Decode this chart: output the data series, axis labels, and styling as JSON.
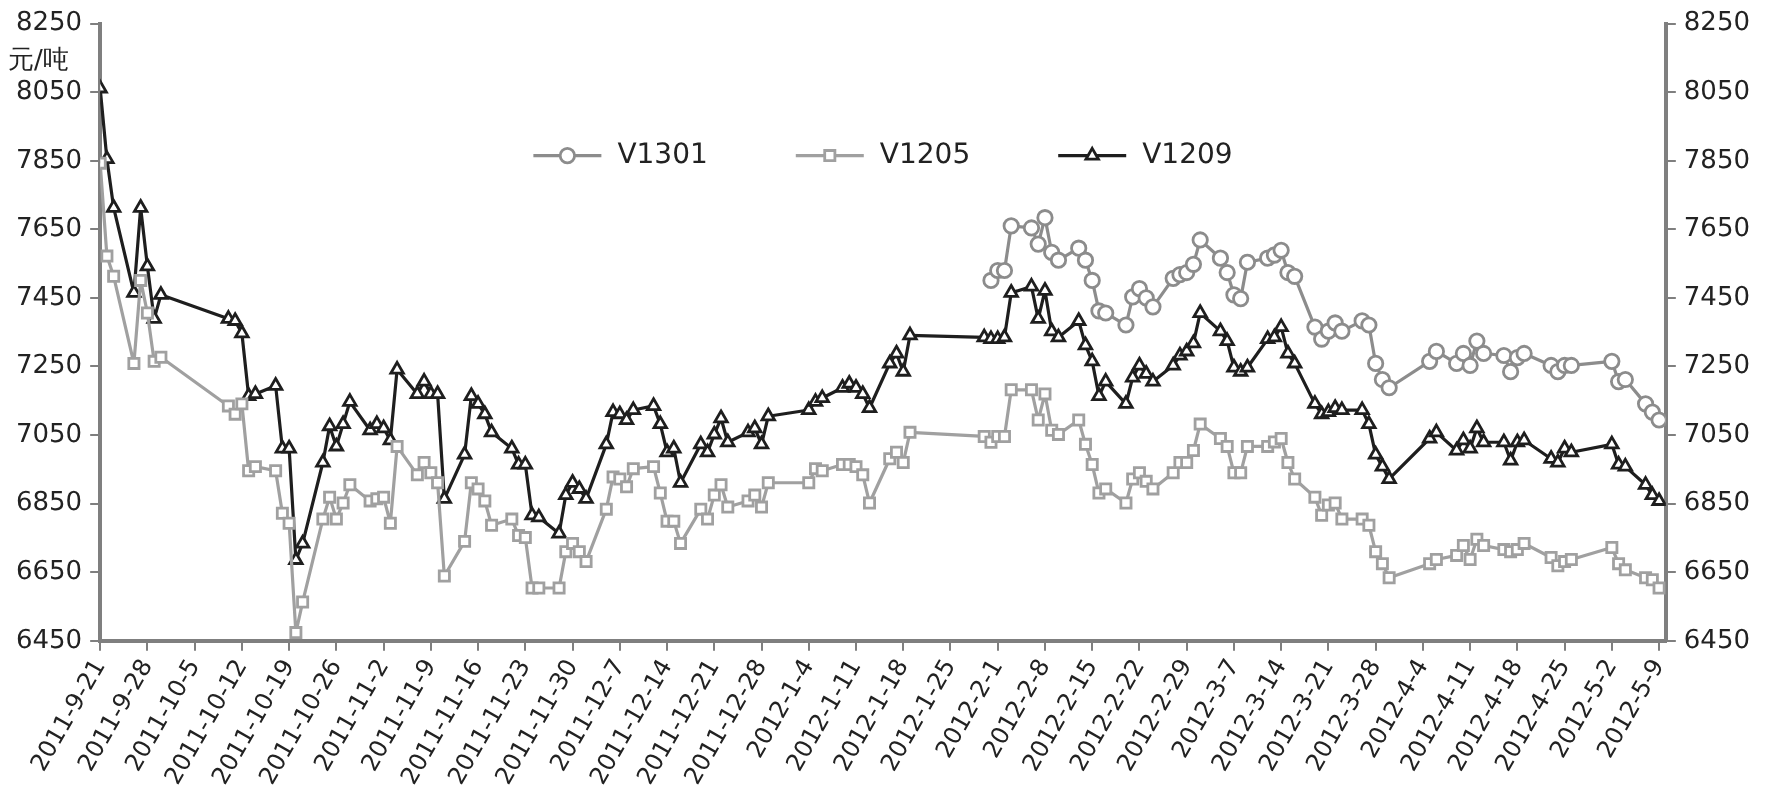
{
  "chart_data": {
    "type": "line",
    "ylabel": "元/吨",
    "legend": "top",
    "grid": false,
    "x": [
      "2011-09-21",
      "2011-09-22",
      "2011-09-23",
      "2011-09-26",
      "2011-09-27",
      "2011-09-28",
      "2011-09-29",
      "2011-09-30",
      "2011-10-10",
      "2011-10-11",
      "2011-10-12",
      "2011-10-13",
      "2011-10-14",
      "2011-10-17",
      "2011-10-18",
      "2011-10-19",
      "2011-10-20",
      "2011-10-21",
      "2011-10-24",
      "2011-10-25",
      "2011-10-26",
      "2011-10-27",
      "2011-10-28",
      "2011-10-31",
      "2011-11-01",
      "2011-11-02",
      "2011-11-03",
      "2011-11-04",
      "2011-11-07",
      "2011-11-08",
      "2011-11-09",
      "2011-11-10",
      "2011-11-11",
      "2011-11-14",
      "2011-11-15",
      "2011-11-16",
      "2011-11-17",
      "2011-11-18",
      "2011-11-21",
      "2011-11-22",
      "2011-11-23",
      "2011-11-24",
      "2011-11-25",
      "2011-11-28",
      "2011-11-29",
      "2011-11-30",
      "2011-12-01",
      "2011-12-02",
      "2011-12-05",
      "2011-12-06",
      "2011-12-07",
      "2011-12-08",
      "2011-12-09",
      "2011-12-12",
      "2011-12-13",
      "2011-12-14",
      "2011-12-15",
      "2011-12-16",
      "2011-12-19",
      "2011-12-20",
      "2011-12-21",
      "2011-12-22",
      "2011-12-23",
      "2011-12-26",
      "2011-12-27",
      "2011-12-28",
      "2011-12-29",
      "2012-01-04",
      "2012-01-05",
      "2012-01-06",
      "2012-01-09",
      "2012-01-10",
      "2012-01-11",
      "2012-01-12",
      "2012-01-13",
      "2012-01-16",
      "2012-01-17",
      "2012-01-18",
      "2012-01-19",
      "2012-01-30",
      "2012-01-31",
      "2012-02-01",
      "2012-02-02",
      "2012-02-03",
      "2012-02-06",
      "2012-02-07",
      "2012-02-08",
      "2012-02-09",
      "2012-02-10",
      "2012-02-13",
      "2012-02-14",
      "2012-02-15",
      "2012-02-16",
      "2012-02-17",
      "2012-02-20",
      "2012-02-21",
      "2012-02-22",
      "2012-02-23",
      "2012-02-24",
      "2012-02-27",
      "2012-02-28",
      "2012-02-29",
      "2012-03-01",
      "2012-03-02",
      "2012-03-05",
      "2012-03-06",
      "2012-03-07",
      "2012-03-08",
      "2012-03-09",
      "2012-03-12",
      "2012-03-13",
      "2012-03-14",
      "2012-03-15",
      "2012-03-16",
      "2012-03-19",
      "2012-03-20",
      "2012-03-21",
      "2012-03-22",
      "2012-03-23",
      "2012-03-26",
      "2012-03-27",
      "2012-03-28",
      "2012-03-29",
      "2012-03-30",
      "2012-04-05",
      "2012-04-06",
      "2012-04-09",
      "2012-04-10",
      "2012-04-11",
      "2012-04-12",
      "2012-04-13",
      "2012-04-16",
      "2012-04-17",
      "2012-04-18",
      "2012-04-19",
      "2012-04-23",
      "2012-04-24",
      "2012-04-25",
      "2012-04-26",
      "2012-05-02",
      "2012-05-03",
      "2012-05-04",
      "2012-05-07",
      "2012-05-08",
      "2012-05-09"
    ],
    "series": [
      {
        "name": "V1301",
        "color": "#8c8c8c",
        "marker": "circle",
        "x": [
          "2012-01-31",
          "2012-02-01",
          "2012-02-02",
          "2012-02-03",
          "2012-02-06",
          "2012-02-07",
          "2012-02-08",
          "2012-02-09",
          "2012-02-10",
          "2012-02-13",
          "2012-02-14",
          "2012-02-15",
          "2012-02-16",
          "2012-02-17",
          "2012-02-20",
          "2012-02-21",
          "2012-02-22",
          "2012-02-23",
          "2012-02-24",
          "2012-02-27",
          "2012-02-28",
          "2012-02-29",
          "2012-03-01",
          "2012-03-02",
          "2012-03-05",
          "2012-03-06",
          "2012-03-07",
          "2012-03-08",
          "2012-03-09",
          "2012-03-12",
          "2012-03-13",
          "2012-03-14",
          "2012-03-15",
          "2012-03-16",
          "2012-03-19",
          "2012-03-20",
          "2012-03-21",
          "2012-03-22",
          "2012-03-23",
          "2012-03-26",
          "2012-03-27",
          "2012-03-28",
          "2012-03-29",
          "2012-03-30",
          "2012-04-05",
          "2012-04-06",
          "2012-04-09",
          "2012-04-10",
          "2012-04-11",
          "2012-04-12",
          "2012-04-13",
          "2012-04-16",
          "2012-04-17",
          "2012-04-18",
          "2012-04-19",
          "2012-04-23",
          "2012-04-24",
          "2012-04-25",
          "2012-04-26",
          "2012-05-02",
          "2012-05-03",
          "2012-05-04",
          "2012-05-07",
          "2012-05-08",
          "2012-05-09"
        ],
        "values": [
          7501,
          7530,
          7530,
          7660,
          7654,
          7607,
          7684,
          7583,
          7560,
          7595,
          7560,
          7501,
          7412,
          7406,
          7371,
          7453,
          7477,
          7450,
          7424,
          7507,
          7518,
          7524,
          7548,
          7619,
          7566,
          7524,
          7459,
          7448,
          7554,
          7566,
          7575,
          7589,
          7524,
          7513,
          7365,
          7330,
          7353,
          7377,
          7353,
          7383,
          7371,
          7259,
          7212,
          7188,
          7265,
          7294,
          7259,
          7288,
          7253,
          7324,
          7288,
          7282,
          7235,
          7276,
          7288,
          7253,
          7235,
          7253,
          7253,
          7265,
          7206,
          7212,
          7141,
          7117,
          7094
        ]
      },
      {
        "name": "V1205",
        "color": "#a0a0a0",
        "marker": "square",
        "values": [
          7843,
          7572,
          7513,
          7259,
          7501,
          7406,
          7265,
          7277,
          7135,
          7111,
          7141,
          6946,
          6958,
          6946,
          6822,
          6793,
          6474,
          6563,
          6805,
          6869,
          6805,
          6852,
          6905,
          6858,
          6864,
          6869,
          6793,
          7017,
          6934,
          6970,
          6940,
          6911,
          6639,
          6740,
          6911,
          6893,
          6858,
          6787,
          6805,
          6757,
          6751,
          6604,
          6604,
          6604,
          6710,
          6734,
          6710,
          6681,
          6834,
          6928,
          6922,
          6899,
          6952,
          6958,
          6881,
          6799,
          6799,
          6734,
          6834,
          6805,
          6875,
          6905,
          6840,
          6858,
          6875,
          6840,
          6911,
          6911,
          6952,
          6946,
          6964,
          6964,
          6958,
          6934,
          6852,
          6981,
          7000,
          6970,
          7058,
          7046,
          7029,
          7046,
          7046,
          7182,
          7182,
          7094,
          7170,
          7064,
          7052,
          7094,
          7023,
          6964,
          6881,
          6893,
          6852,
          6922,
          6940,
          6915,
          6893,
          6940,
          6970,
          6970,
          7005,
          7082,
          7040,
          7017,
          6940,
          6940,
          7017,
          7017,
          7030,
          7040,
          6970,
          6922,
          6869,
          6816,
          6846,
          6852,
          6805,
          6805,
          6787,
          6710,
          6675,
          6634,
          6675,
          6687,
          6699,
          6728,
          6687,
          6746,
          6728,
          6716,
          6710,
          6716,
          6734,
          6693,
          6669,
          6681,
          6687,
          6722,
          6675,
          6657,
          6634,
          6628,
          6604
        ]
      },
      {
        "name": "V1209",
        "color": "#1e1e1e",
        "marker": "triangle",
        "values": [
          8061,
          7855,
          7713,
          7465,
          7713,
          7542,
          7389,
          7459,
          7389,
          7383,
          7347,
          7164,
          7170,
          7194,
          7011,
          7011,
          6686,
          6734,
          6970,
          7076,
          7017,
          7082,
          7147,
          7064,
          7082,
          7070,
          7035,
          7241,
          7170,
          7206,
          7170,
          7170,
          6864,
          6993,
          7164,
          7141,
          7111,
          7058,
          7011,
          6964,
          6964,
          6816,
          6810,
          6763,
          6875,
          6911,
          6893,
          6864,
          7023,
          7117,
          7111,
          7094,
          7123,
          7135,
          7082,
          7000,
          7011,
          6911,
          7023,
          7000,
          7052,
          7099,
          7029,
          7058,
          7070,
          7023,
          7105,
          7123,
          7147,
          7158,
          7188,
          7200,
          7188,
          7170,
          7129,
          7259,
          7288,
          7235,
          7341,
          7335,
          7330,
          7330,
          7335,
          7465,
          7483,
          7389,
          7471,
          7353,
          7335,
          7383,
          7312,
          7265,
          7164,
          7206,
          7141,
          7218,
          7253,
          7229,
          7206,
          7253,
          7282,
          7294,
          7318,
          7406,
          7353,
          7324,
          7247,
          7235,
          7247,
          7330,
          7335,
          7365,
          7288,
          7259,
          7141,
          7111,
          7117,
          7129,
          7123,
          7123,
          7082,
          6993,
          6958,
          6922,
          7040,
          7058,
          7005,
          7035,
          7011,
          7070,
          7029,
          7029,
          6976,
          7029,
          7035,
          6981,
          6970,
          7011,
          7000,
          7023,
          6964,
          6958,
          6905,
          6875,
          6858
        ]
      }
    ],
    "xlim": [
      "2011-09-21",
      "2012-05-10"
    ],
    "xticks": [
      {
        "value": "2011-09-21",
        "label": "2011-9-21"
      },
      {
        "value": "2011-09-28",
        "label": "2011-9-28"
      },
      {
        "value": "2011-10-05",
        "label": "2011-10-5"
      },
      {
        "value": "2011-10-12",
        "label": "2011-10-12"
      },
      {
        "value": "2011-10-19",
        "label": "2011-10-19"
      },
      {
        "value": "2011-10-26",
        "label": "2011-10-26"
      },
      {
        "value": "2011-11-02",
        "label": "2011-11-2"
      },
      {
        "value": "2011-11-09",
        "label": "2011-11-9"
      },
      {
        "value": "2011-11-16",
        "label": "2011-11-16"
      },
      {
        "value": "2011-11-23",
        "label": "2011-11-23"
      },
      {
        "value": "2011-11-30",
        "label": "2011-11-30"
      },
      {
        "value": "2011-12-07",
        "label": "2011-12-7"
      },
      {
        "value": "2011-12-14",
        "label": "2011-12-14"
      },
      {
        "value": "2011-12-21",
        "label": "2011-12-21"
      },
      {
        "value": "2011-12-28",
        "label": "2011-12-28"
      },
      {
        "value": "2012-01-04",
        "label": "2012-1-4"
      },
      {
        "value": "2012-01-11",
        "label": "2012-1-11"
      },
      {
        "value": "2012-01-18",
        "label": "2012-1-18"
      },
      {
        "value": "2012-01-25",
        "label": "2012-1-25"
      },
      {
        "value": "2012-02-01",
        "label": "2012-2-1"
      },
      {
        "value": "2012-02-08",
        "label": "2012-2-8"
      },
      {
        "value": "2012-02-15",
        "label": "2012-2-15"
      },
      {
        "value": "2012-02-22",
        "label": "2012-2-22"
      },
      {
        "value": "2012-02-29",
        "label": "2012-2-29"
      },
      {
        "value": "2012-03-07",
        "label": "2012-3-7"
      },
      {
        "value": "2012-03-14",
        "label": "2012-3-14"
      },
      {
        "value": "2012-03-21",
        "label": "2012-3-21"
      },
      {
        "value": "2012-03-28",
        "label": "2012-3-28"
      },
      {
        "value": "2012-04-04",
        "label": "2012-4-4"
      },
      {
        "value": "2012-04-11",
        "label": "2012-4-11"
      },
      {
        "value": "2012-04-18",
        "label": "2012-4-18"
      },
      {
        "value": "2012-04-25",
        "label": "2012-4-25"
      },
      {
        "value": "2012-05-02",
        "label": "2012-5-2"
      },
      {
        "value": "2012-05-09",
        "label": "2012-5-9"
      }
    ],
    "ylim": [
      6450,
      8250
    ],
    "yticks": [
      6450,
      6650,
      6850,
      7050,
      7250,
      7450,
      7650,
      7850,
      8050,
      8250
    ],
    "y2lim": [
      6450,
      8250
    ],
    "y2ticks": [
      6450,
      6650,
      6850,
      7050,
      7250,
      7450,
      7650,
      7850,
      8050,
      8250
    ]
  }
}
